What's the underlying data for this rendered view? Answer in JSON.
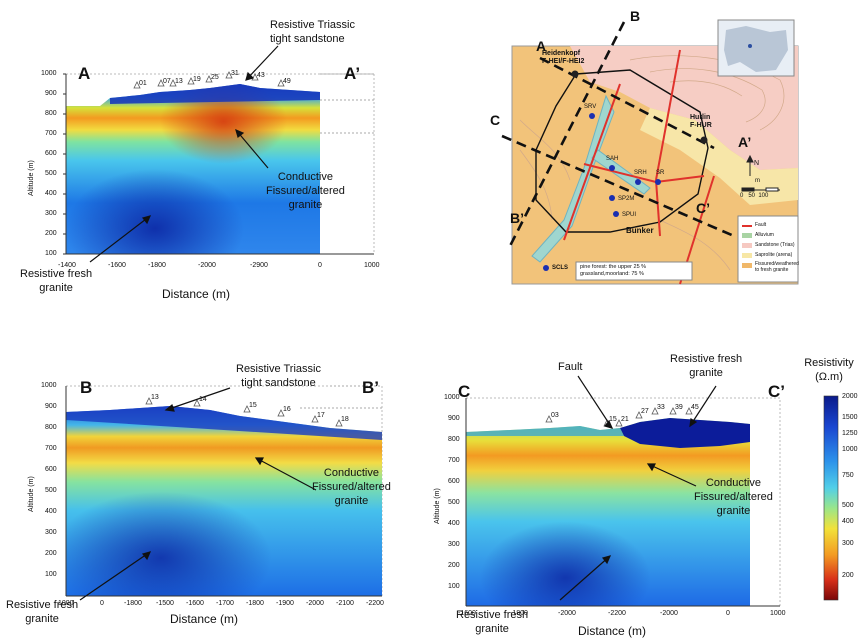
{
  "sections": {
    "aa": {
      "left": "A",
      "right": "A’",
      "ylabel": "Altitude (m)",
      "xlabel": "Distance (m)",
      "yticks": [
        "1000",
        "900",
        "800",
        "700",
        "600",
        "500",
        "400",
        "300",
        "200",
        "100"
      ],
      "xticks": [
        "-1400",
        "-1600",
        "-1800",
        "-2000",
        "-2900",
        "0",
        "1000"
      ],
      "stations": [
        "01",
        "07",
        "13",
        "19",
        "25",
        "31",
        "43",
        "49"
      ],
      "annot_top": "Resistive Triassic\ntight sandstone",
      "annot_mid": "Conductive\nFissured/altered\ngranite",
      "annot_bottom": "Resistive fresh\ngranite"
    },
    "bb": {
      "left": "B",
      "right": "B’",
      "ylabel": "Altitude (m)",
      "xlabel": "Distance (m)",
      "yticks": [
        "1000",
        "900",
        "800",
        "700",
        "600",
        "500",
        "400",
        "300",
        "200",
        "100"
      ],
      "xticks": [
        "1000",
        "0",
        "-1800",
        "-1500",
        "-1600",
        "-1700",
        "-1800",
        "-1900",
        "-2000",
        "-2100",
        "-2200"
      ],
      "stations": [
        "13",
        "14",
        "15",
        "16",
        "17",
        "18"
      ],
      "annot_top": "Resistive Triassic\ntight sandstone",
      "annot_mid": "Conductive\nFissured/altered\ngranite",
      "annot_bottom": "Resistive fresh\ngranite"
    },
    "cc": {
      "left": "C",
      "right": "C’",
      "ylabel": "Altitude (m)",
      "xlabel": "Distance (m)",
      "yticks": [
        "1000",
        "900",
        "800",
        "700",
        "600",
        "500",
        "400",
        "300",
        "200",
        "100"
      ],
      "xticks": [
        "-1600",
        "-1800",
        "-2000",
        "-2200",
        "-2000",
        "0",
        "1000"
      ],
      "stations": [
        "03",
        "15",
        "21",
        "27",
        "33",
        "39",
        "45"
      ],
      "annot_fault": "Fault",
      "annot_top": "Resistive fresh\ngranite",
      "annot_mid": "Conductive\nFissured/altered\ngranite",
      "annot_bottom": "Resistive fresh\ngranite"
    }
  },
  "colorbar": {
    "title": "Resistivity\n(Ω.m)",
    "ticks": [
      "2000",
      "1500",
      "1250",
      "1000",
      "750",
      "500",
      "400",
      "300",
      "200"
    ]
  },
  "map": {
    "line_labels": [
      "A",
      "A’",
      "B",
      "B’",
      "C",
      "C’"
    ],
    "places": [
      "Heidenkopf\nF-HEI/F-HEI2",
      "Hurlin\nF-HUR",
      "Bunker"
    ],
    "stations": [
      "SRV",
      "SAH",
      "SRH",
      "SR",
      "SP2M",
      "SPUI",
      "SCLS"
    ],
    "scale": "0   50  100",
    "north": "N",
    "scale_unit": "m",
    "land_note": "pine forest: the upper 25 %\ngrassland,moorland: 75 %",
    "legend": [
      {
        "label": "Fault",
        "color": "#e0322c"
      },
      {
        "label": "Alluvium",
        "color": "#a9d4a4"
      },
      {
        "label": "Sandstone (Trias)",
        "color": "#f6c9c2"
      },
      {
        "label": "Saprolite (arena)",
        "color": "#f7e7a6"
      },
      {
        "label": "Fissured/weathered\nto fresh granite",
        "color": "#f0b86a"
      }
    ]
  },
  "colors": {
    "deep_blue": "#0a2aa8",
    "blue": "#1a64e0",
    "cyan": "#4fc6e8",
    "green": "#8be08c",
    "yellow": "#f4e03a",
    "orange": "#f08a1c",
    "red": "#c81a12"
  }
}
